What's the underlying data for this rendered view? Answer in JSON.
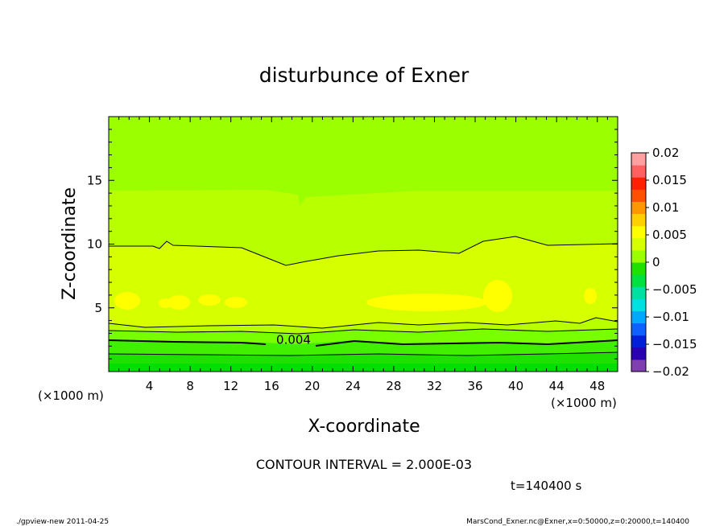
{
  "chart_data": {
    "type": "heatmap",
    "title": "disturbunce of Exner",
    "xlabel": "X-coordinate",
    "ylabel": "Z-coordinate",
    "x_unit": "(×1000 m)",
    "x_unit_right": "(×1000 m)",
    "xlim": [
      0,
      50
    ],
    "ylim": [
      0,
      20
    ],
    "x_ticks": [
      4,
      8,
      12,
      16,
      20,
      24,
      28,
      32,
      36,
      40,
      44,
      48
    ],
    "y_ticks": [
      5,
      10,
      15
    ],
    "contour_interval_text": "CONTOUR INTERVAL = 2.000E-03",
    "contour_labels": [
      {
        "text": "0.004",
        "x": 18,
        "z": 2.5
      }
    ],
    "time_text": "t=140400 s",
    "colorbar": {
      "ticks": [
        "0.02",
        "0.015",
        "0.01",
        "0.005",
        "0",
        "−0.005",
        "−0.01",
        "−0.015",
        "−0.02"
      ],
      "range": [
        -0.02,
        0.02
      ],
      "colors": [
        "#7f3faf",
        "#2a00b0",
        "#0020d8",
        "#1060ff",
        "#00a8ff",
        "#00e0e0",
        "#00e0a0",
        "#00e040",
        "#20e000",
        "#9cff00",
        "#d6ff00",
        "#ffff00",
        "#ffd000",
        "#ff9800",
        "#ff5000",
        "#ff2000",
        "#ff6060",
        "#ffa0a0"
      ]
    },
    "grid": false
  },
  "footer": {
    "left": "./gpview-new   2011-04-25",
    "right": "MarsCond_Exner.nc@Exner,x=0:50000,z=0:20000,t=140400"
  }
}
